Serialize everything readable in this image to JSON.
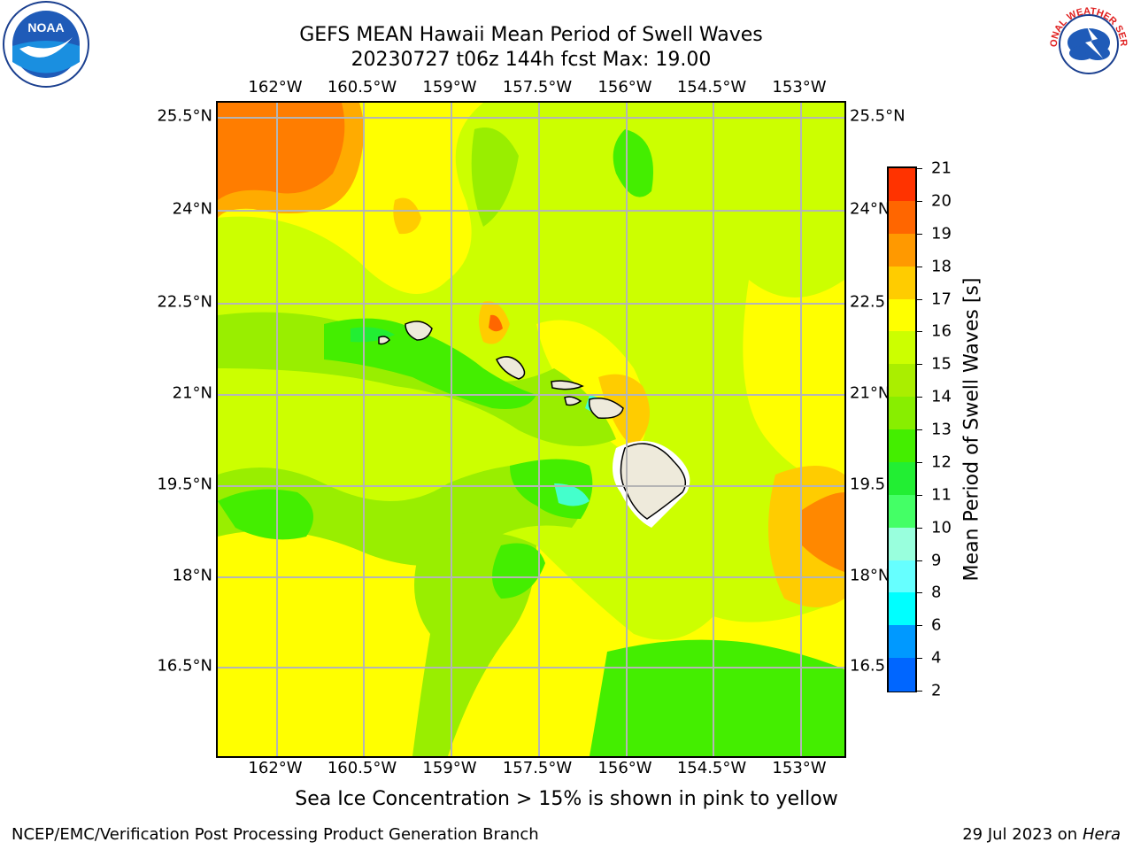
{
  "title_line1": "GEFS MEAN Hawaii Mean Period of Swell Waves",
  "title_line2": "20230727 t06z 144h fcst   Max: 19.00",
  "subtitle": "Sea Ice Concentration > 15% is shown in pink to yellow",
  "footer_left": "NCEP/EMC/Verification Post Processing Product Generation Branch",
  "footer_right_date": "29 Jul 2023 on ",
  "footer_right_host": "Hera",
  "logos": {
    "left": "NOAA",
    "right": "NATIONAL WEATHER SERVICE"
  },
  "lon_labels": [
    "162°W",
    "160.5°W",
    "159°W",
    "157.5°W",
    "156°W",
    "154.5°W",
    "153°W"
  ],
  "lat_labels": [
    "25.5°N",
    "24°N",
    "22.5°N",
    "21°N",
    "19.5°N",
    "18°N",
    "16.5°N"
  ],
  "lat_labels_right": [
    "25.5°N",
    "24°N",
    "22.5",
    "21°N",
    "19.5",
    "18°N",
    "16.5"
  ],
  "colorbar": {
    "title": "Mean Period of Swell Waves [s]",
    "labels": [
      "21",
      "20",
      "19",
      "18",
      "17",
      "16",
      "15",
      "14",
      "13",
      "12",
      "11",
      "10",
      "9",
      "8",
      "6",
      "4",
      "2"
    ],
    "colors": [
      "#ff0000",
      "#ff3300",
      "#ff6600",
      "#ff9900",
      "#ffcc00",
      "#ffff00",
      "#ccff00",
      "#aaee00",
      "#88ee00",
      "#44ee00",
      "#22ee33",
      "#44ff66",
      "#99ffdd",
      "#66ffff",
      "#00ffff",
      "#0099ff",
      "#0066ff",
      "#0000ff"
    ],
    "palette_note": "levels 21 to 2"
  },
  "colors": {
    "yellow": "#ffff00",
    "yellow_green": "#ccff00",
    "light_green": "#99ee00",
    "green": "#44ee00",
    "bright_green": "#22ee33",
    "cyan_green": "#44ffcc",
    "orange": "#ff8800",
    "dark_orange": "#ff6600",
    "amber": "#ffcc00",
    "land": "#eeeadb"
  }
}
